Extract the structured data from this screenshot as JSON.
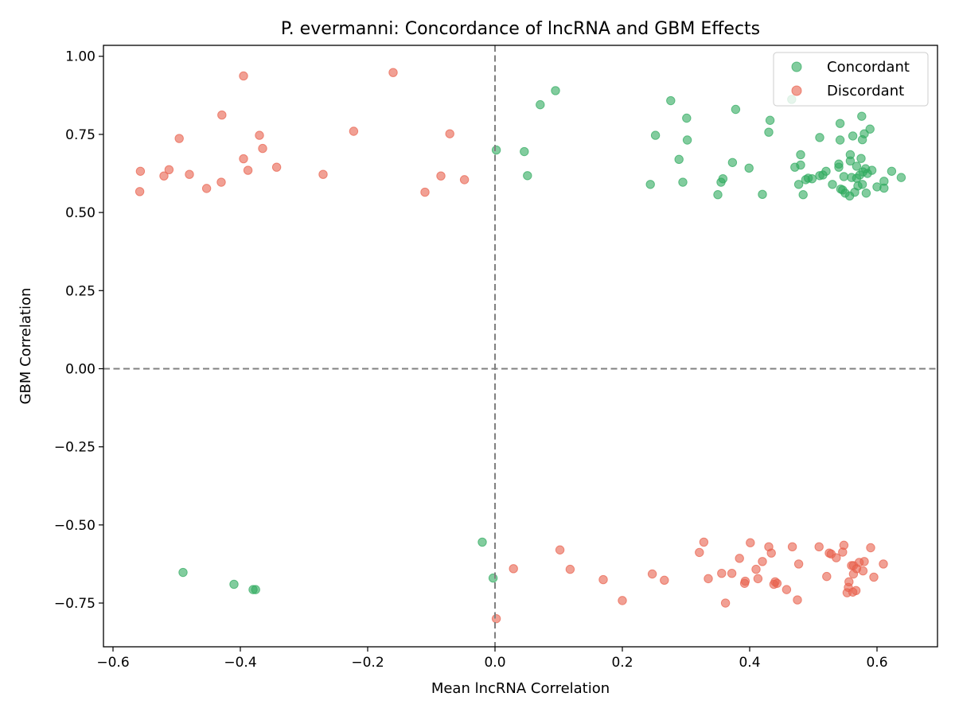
{
  "chart_data": {
    "type": "scatter",
    "title": "P. evermanni: Concordance of lncRNA and GBM Effects",
    "xlabel": "Mean lncRNA Correlation",
    "ylabel": "GBM Correlation",
    "xlim": [
      -0.615,
      0.695
    ],
    "ylim": [
      -0.89,
      1.035
    ],
    "xticks": [
      -0.6,
      -0.4,
      -0.2,
      0.0,
      0.2,
      0.4,
      0.6
    ],
    "xtick_labels": [
      "−0.6",
      "−0.4",
      "−0.2",
      "0.0",
      "0.2",
      "0.4",
      "0.6"
    ],
    "yticks": [
      -0.75,
      -0.5,
      -0.25,
      0.0,
      0.25,
      0.5,
      0.75,
      1.0
    ],
    "ytick_labels": [
      "−0.75",
      "−0.50",
      "−0.25",
      "0.00",
      "0.25",
      "0.50",
      "0.75",
      "1.00"
    ],
    "reference_lines": {
      "x": 0,
      "y": 0
    },
    "legend_position": "top-right",
    "series": [
      {
        "name": "Concordant",
        "color": "#2eaa5e",
        "points": [
          [
            0.095,
            0.89
          ],
          [
            0.071,
            0.845
          ],
          [
            0.276,
            0.858
          ],
          [
            0.378,
            0.83
          ],
          [
            0.466,
            0.862
          ],
          [
            0.576,
            0.808
          ],
          [
            0.301,
            0.802
          ],
          [
            0.432,
            0.795
          ],
          [
            0.542,
            0.785
          ],
          [
            0.589,
            0.767
          ],
          [
            0.252,
            0.747
          ],
          [
            0.43,
            0.757
          ],
          [
            0.58,
            0.752
          ],
          [
            0.562,
            0.745
          ],
          [
            0.302,
            0.732
          ],
          [
            0.51,
            0.74
          ],
          [
            0.542,
            0.732
          ],
          [
            0.577,
            0.733
          ],
          [
            0.002,
            0.7
          ],
          [
            0.046,
            0.695
          ],
          [
            0.48,
            0.685
          ],
          [
            0.558,
            0.685
          ],
          [
            0.289,
            0.67
          ],
          [
            0.373,
            0.66
          ],
          [
            0.575,
            0.673
          ],
          [
            0.471,
            0.645
          ],
          [
            0.48,
            0.652
          ],
          [
            0.54,
            0.655
          ],
          [
            0.399,
            0.642
          ],
          [
            0.54,
            0.645
          ],
          [
            0.52,
            0.632
          ],
          [
            0.558,
            0.665
          ],
          [
            0.568,
            0.648
          ],
          [
            0.582,
            0.64
          ],
          [
            0.592,
            0.635
          ],
          [
            0.623,
            0.632
          ],
          [
            0.051,
            0.618
          ],
          [
            0.358,
            0.608
          ],
          [
            0.488,
            0.605
          ],
          [
            0.492,
            0.61
          ],
          [
            0.498,
            0.608
          ],
          [
            0.51,
            0.618
          ],
          [
            0.515,
            0.62
          ],
          [
            0.548,
            0.615
          ],
          [
            0.56,
            0.612
          ],
          [
            0.568,
            0.61
          ],
          [
            0.573,
            0.62
          ],
          [
            0.578,
            0.63
          ],
          [
            0.585,
            0.625
          ],
          [
            0.638,
            0.612
          ],
          [
            0.355,
            0.597
          ],
          [
            0.244,
            0.59
          ],
          [
            0.295,
            0.597
          ],
          [
            0.477,
            0.59
          ],
          [
            0.53,
            0.59
          ],
          [
            0.543,
            0.575
          ],
          [
            0.546,
            0.572
          ],
          [
            0.57,
            0.585
          ],
          [
            0.577,
            0.59
          ],
          [
            0.6,
            0.582
          ],
          [
            0.611,
            0.6
          ],
          [
            0.611,
            0.578
          ],
          [
            0.35,
            0.557
          ],
          [
            0.42,
            0.558
          ],
          [
            0.484,
            0.557
          ],
          [
            0.55,
            0.562
          ],
          [
            0.557,
            0.553
          ],
          [
            0.565,
            0.565
          ],
          [
            0.583,
            0.562
          ],
          [
            -0.02,
            -0.555
          ],
          [
            -0.003,
            -0.67
          ],
          [
            -0.49,
            -0.652
          ],
          [
            -0.41,
            -0.69
          ],
          [
            -0.38,
            -0.707
          ],
          [
            -0.376,
            -0.707
          ]
        ]
      },
      {
        "name": "Discordant",
        "color": "#e8604c",
        "points": [
          [
            -0.395,
            0.937
          ],
          [
            -0.16,
            0.948
          ],
          [
            -0.429,
            0.812
          ],
          [
            -0.222,
            0.76
          ],
          [
            -0.496,
            0.737
          ],
          [
            -0.37,
            0.747
          ],
          [
            -0.071,
            0.752
          ],
          [
            -0.365,
            0.705
          ],
          [
            -0.395,
            0.672
          ],
          [
            -0.343,
            0.645
          ],
          [
            -0.557,
            0.632
          ],
          [
            -0.512,
            0.637
          ],
          [
            -0.52,
            0.617
          ],
          [
            -0.48,
            0.622
          ],
          [
            -0.388,
            0.635
          ],
          [
            -0.27,
            0.622
          ],
          [
            -0.085,
            0.617
          ],
          [
            -0.048,
            0.605
          ],
          [
            -0.43,
            0.597
          ],
          [
            -0.453,
            0.577
          ],
          [
            -0.558,
            0.567
          ],
          [
            -0.11,
            0.565
          ],
          [
            0.328,
            -0.555
          ],
          [
            0.401,
            -0.557
          ],
          [
            0.548,
            -0.565
          ],
          [
            0.467,
            -0.57
          ],
          [
            0.509,
            -0.57
          ],
          [
            0.43,
            -0.57
          ],
          [
            0.59,
            -0.573
          ],
          [
            0.102,
            -0.58
          ],
          [
            0.321,
            -0.588
          ],
          [
            0.434,
            -0.59
          ],
          [
            0.525,
            -0.59
          ],
          [
            0.528,
            -0.593
          ],
          [
            0.546,
            -0.587
          ],
          [
            0.536,
            -0.605
          ],
          [
            0.384,
            -0.607
          ],
          [
            0.42,
            -0.617
          ],
          [
            0.572,
            -0.62
          ],
          [
            0.58,
            -0.617
          ],
          [
            0.61,
            -0.625
          ],
          [
            0.477,
            -0.625
          ],
          [
            0.56,
            -0.63
          ],
          [
            0.563,
            -0.63
          ],
          [
            0.029,
            -0.64
          ],
          [
            0.118,
            -0.642
          ],
          [
            0.41,
            -0.642
          ],
          [
            0.568,
            -0.64
          ],
          [
            0.578,
            -0.647
          ],
          [
            0.356,
            -0.655
          ],
          [
            0.372,
            -0.655
          ],
          [
            0.247,
            -0.657
          ],
          [
            0.563,
            -0.657
          ],
          [
            0.595,
            -0.667
          ],
          [
            0.521,
            -0.665
          ],
          [
            0.17,
            -0.675
          ],
          [
            0.266,
            -0.677
          ],
          [
            0.335,
            -0.672
          ],
          [
            0.393,
            -0.68
          ],
          [
            0.413,
            -0.672
          ],
          [
            0.44,
            -0.682
          ],
          [
            0.392,
            -0.687
          ],
          [
            0.438,
            -0.69
          ],
          [
            0.443,
            -0.687
          ],
          [
            0.556,
            -0.682
          ],
          [
            0.555,
            -0.7
          ],
          [
            0.458,
            -0.707
          ],
          [
            0.567,
            -0.71
          ],
          [
            0.553,
            -0.717
          ],
          [
            0.562,
            -0.715
          ],
          [
            0.2,
            -0.742
          ],
          [
            0.475,
            -0.74
          ],
          [
            0.362,
            -0.75
          ],
          [
            0.002,
            -0.8
          ]
        ]
      }
    ]
  }
}
